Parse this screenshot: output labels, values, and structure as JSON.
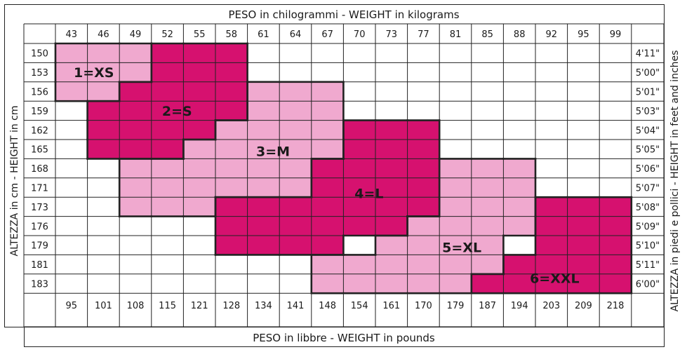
{
  "chart_data": {
    "type": "heatmap",
    "title": "",
    "top_axis_label": "PESO in chilogrammi - WEIGHT in kilograms",
    "bottom_axis_label": "PESO in libbre - WEIGHT in pounds",
    "left_axis_label": "ALTEZZA in cm - HEIGHT in cm",
    "right_axis_label": "ALTEZZA in piedi e pollici - HEIGHT in feet and inches",
    "weights_kg": [
      "43",
      "46",
      "49",
      "52",
      "55",
      "58",
      "61",
      "64",
      "67",
      "70",
      "73",
      "77",
      "81",
      "85",
      "88",
      "92",
      "95",
      "99"
    ],
    "weights_lb": [
      "95",
      "101",
      "108",
      "115",
      "121",
      "128",
      "134",
      "141",
      "148",
      "154",
      "161",
      "170",
      "179",
      "187",
      "194",
      "203",
      "209",
      "218"
    ],
    "heights_cm": [
      "150",
      "153",
      "156",
      "159",
      "162",
      "165",
      "168",
      "171",
      "173",
      "176",
      "179",
      "181",
      "183"
    ],
    "heights_ft": [
      "4'11\"",
      "5'00\"",
      "5'01\"",
      "5'03\"",
      "5'04\"",
      "5'05\"",
      "5'06\"",
      "5'07\"",
      "5'08\"",
      "5'09\"",
      "5'10\"",
      "5'11\"",
      "6'00\""
    ],
    "colors": {
      "light": "#f0a9cf",
      "dark": "#d6116f",
      "grid": "#222222",
      "white": "#ffffff"
    },
    "sizes": [
      {
        "label": "1=XS",
        "shade": "light",
        "rows": [
          [
            0,
            3
          ],
          [
            0,
            3
          ],
          [
            0,
            2
          ]
        ],
        "row_start": 0
      },
      {
        "label": "2=S",
        "shade": "dark",
        "row_ranges": [
          [
            0,
            3,
            5
          ],
          [
            1,
            3,
            5
          ],
          [
            2,
            2,
            5
          ],
          [
            3,
            1,
            5
          ],
          [
            4,
            1,
            4
          ],
          [
            5,
            1,
            3
          ]
        ]
      },
      {
        "label": "3=M",
        "shade": "light",
        "row_ranges": [
          [
            2,
            6,
            8
          ],
          [
            3,
            6,
            8
          ],
          [
            4,
            5,
            8
          ],
          [
            5,
            4,
            8
          ],
          [
            6,
            2,
            7
          ],
          [
            7,
            2,
            7
          ],
          [
            8,
            2,
            4
          ]
        ]
      },
      {
        "label": "4=L",
        "shade": "dark",
        "row_ranges": [
          [
            4,
            9,
            11
          ],
          [
            5,
            9,
            11
          ],
          [
            6,
            8,
            11
          ],
          [
            7,
            8,
            11
          ],
          [
            8,
            5,
            11
          ],
          [
            9,
            5,
            10
          ],
          [
            10,
            5,
            8
          ]
        ]
      },
      {
        "label": "5=XL",
        "shade": "light",
        "row_ranges": [
          [
            6,
            12,
            14
          ],
          [
            7,
            12,
            14
          ],
          [
            8,
            12,
            14
          ],
          [
            9,
            11,
            14
          ],
          [
            10,
            10,
            13
          ],
          [
            11,
            8,
            13
          ],
          [
            12,
            8,
            12
          ]
        ]
      },
      {
        "label": "6=XXL",
        "shade": "dark",
        "row_ranges": [
          [
            8,
            15,
            17
          ],
          [
            9,
            15,
            17
          ],
          [
            10,
            15,
            17
          ],
          [
            11,
            14,
            17
          ],
          [
            12,
            13,
            17
          ]
        ]
      }
    ]
  }
}
